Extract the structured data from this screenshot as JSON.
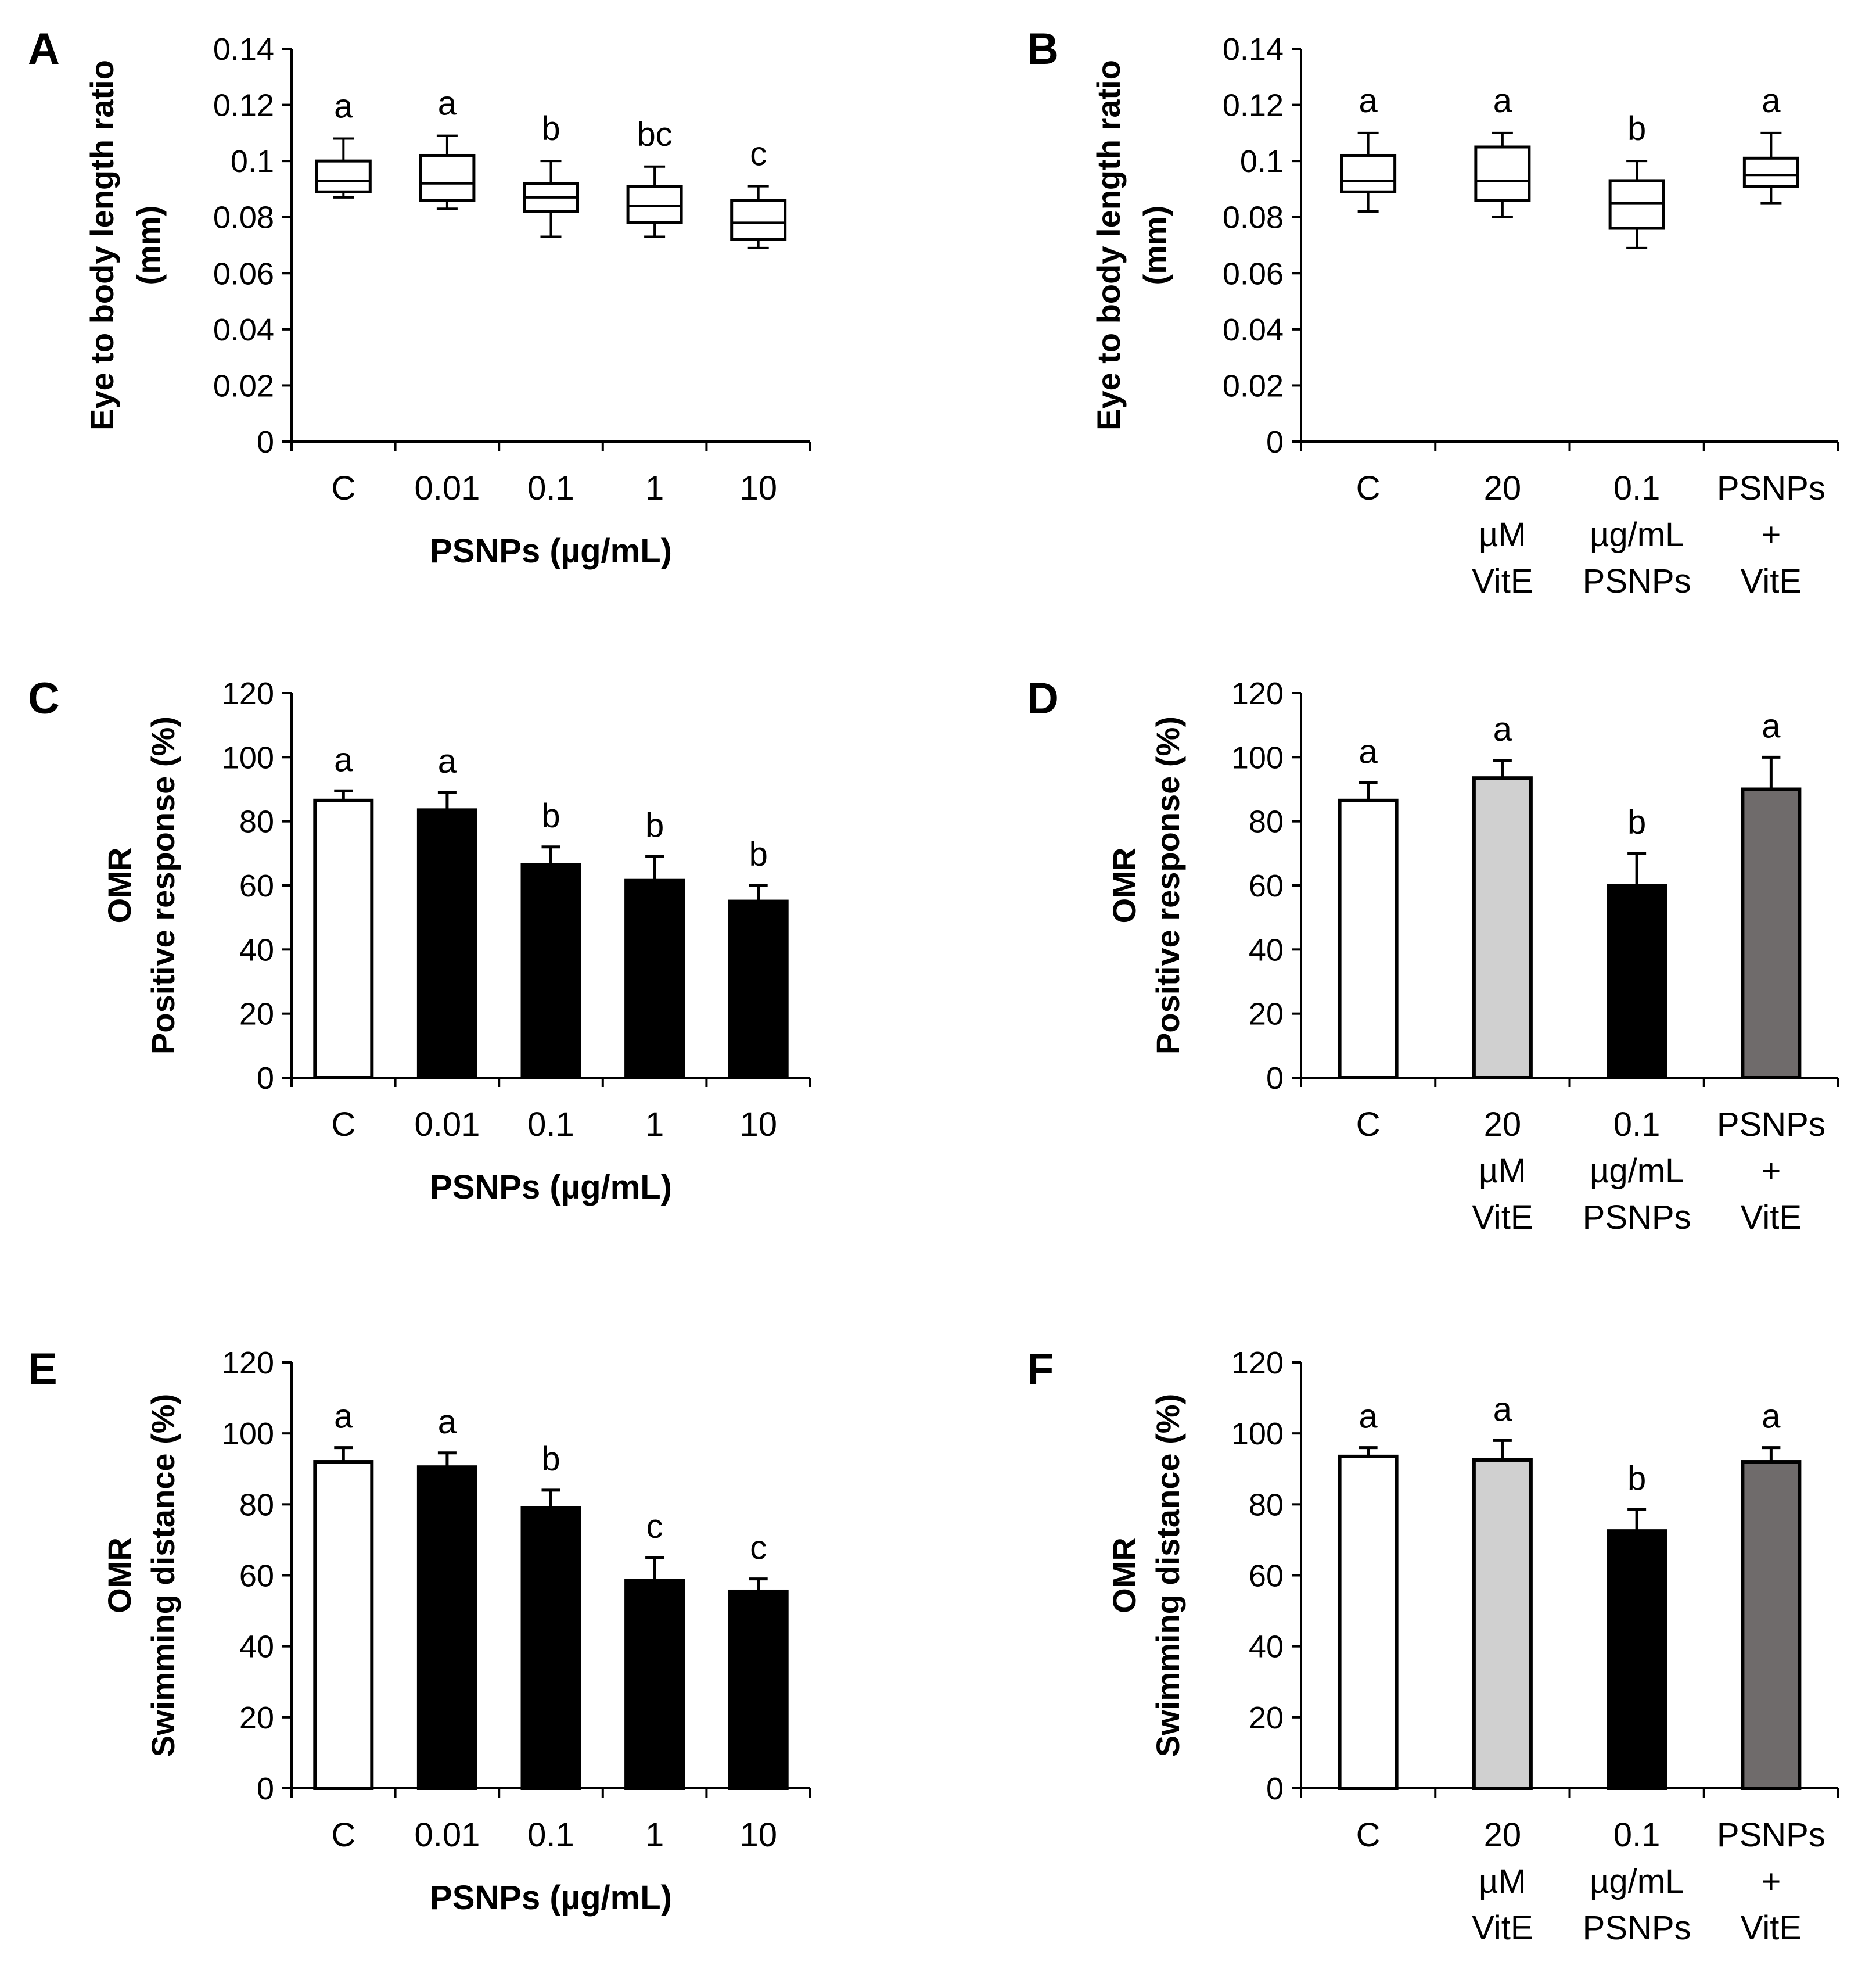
{
  "colors": {
    "control": "#ffffff",
    "vitE": "#d0d0d0",
    "psnp": "#000000",
    "combo": "#6f6b6b",
    "stroke": "#000000"
  },
  "chart_data": [
    {
      "panel": "A",
      "type": "box",
      "ylabel": [
        "Eye to body length ratio",
        "(mm)"
      ],
      "xlabel": "PSNPs (µg/mL)",
      "ylim": [
        0,
        0.14
      ],
      "yticks": [
        0,
        0.02,
        0.04,
        0.06,
        0.08,
        0.1,
        0.12,
        0.14
      ],
      "ytick_labels": [
        "0",
        "0.02",
        "0.04",
        "0.06",
        "0.08",
        "0.1",
        "0.12",
        "0.14"
      ],
      "categories": [
        [
          "C"
        ],
        [
          "0.01"
        ],
        [
          "0.1"
        ],
        [
          "1"
        ],
        [
          "10"
        ]
      ],
      "boxes": [
        {
          "min": 0.087,
          "q1": 0.089,
          "median": 0.093,
          "q3": 0.1,
          "max": 0.108
        },
        {
          "min": 0.083,
          "q1": 0.086,
          "median": 0.092,
          "q3": 0.102,
          "max": 0.109
        },
        {
          "min": 0.073,
          "q1": 0.082,
          "median": 0.087,
          "q3": 0.092,
          "max": 0.1
        },
        {
          "min": 0.073,
          "q1": 0.078,
          "median": 0.084,
          "q3": 0.091,
          "max": 0.098
        },
        {
          "min": 0.069,
          "q1": 0.072,
          "median": 0.078,
          "q3": 0.086,
          "max": 0.091
        }
      ],
      "letters": [
        "a",
        "a",
        "b",
        "bc",
        "c"
      ],
      "fills": [
        "control",
        "control",
        "control",
        "control",
        "control"
      ]
    },
    {
      "panel": "B",
      "type": "box",
      "ylabel": [
        "Eye to body length ratio",
        "(mm)"
      ],
      "xlabel": "",
      "ylim": [
        0,
        0.14
      ],
      "yticks": [
        0,
        0.02,
        0.04,
        0.06,
        0.08,
        0.1,
        0.12,
        0.14
      ],
      "ytick_labels": [
        "0",
        "0.02",
        "0.04",
        "0.06",
        "0.08",
        "0.1",
        "0.12",
        "0.14"
      ],
      "categories": [
        [
          "C"
        ],
        [
          "20",
          "µM",
          "VitE"
        ],
        [
          "0.1",
          "µg/mL",
          "PSNPs"
        ],
        [
          "PSNPs",
          "+",
          "VitE"
        ]
      ],
      "boxes": [
        {
          "min": 0.082,
          "q1": 0.089,
          "median": 0.093,
          "q3": 0.102,
          "max": 0.11
        },
        {
          "min": 0.08,
          "q1": 0.086,
          "median": 0.093,
          "q3": 0.105,
          "max": 0.11
        },
        {
          "min": 0.069,
          "q1": 0.076,
          "median": 0.085,
          "q3": 0.093,
          "max": 0.1
        },
        {
          "min": 0.085,
          "q1": 0.091,
          "median": 0.095,
          "q3": 0.101,
          "max": 0.11
        }
      ],
      "letters": [
        "a",
        "a",
        "b",
        "a"
      ],
      "fills": [
        "control",
        "control",
        "control",
        "control"
      ]
    },
    {
      "panel": "C",
      "type": "bar",
      "ylabel": [
        "OMR",
        "Positive response (%)"
      ],
      "xlabel": "PSNPs (µg/mL)",
      "ylim": [
        0,
        120
      ],
      "yticks": [
        0,
        20,
        40,
        60,
        80,
        100,
        120
      ],
      "ytick_labels": [
        "0",
        "20",
        "40",
        "60",
        "80",
        "100",
        "120"
      ],
      "categories": [
        [
          "C"
        ],
        [
          "0.01"
        ],
        [
          "0.1"
        ],
        [
          "1"
        ],
        [
          "10"
        ]
      ],
      "values": [
        86.5,
        83.5,
        66.5,
        61.5,
        55
      ],
      "errors": [
        3,
        5.5,
        5.5,
        7.5,
        5
      ],
      "letters": [
        "a",
        "a",
        "b",
        "b",
        "b"
      ],
      "fills": [
        "control",
        "psnp",
        "psnp",
        "psnp",
        "psnp"
      ]
    },
    {
      "panel": "D",
      "type": "bar",
      "ylabel": [
        "OMR",
        "Positive response (%)"
      ],
      "xlabel": "",
      "ylim": [
        0,
        120
      ],
      "yticks": [
        0,
        20,
        40,
        60,
        80,
        100,
        120
      ],
      "ytick_labels": [
        "0",
        "20",
        "40",
        "60",
        "80",
        "100",
        "120"
      ],
      "categories": [
        [
          "C"
        ],
        [
          "20",
          "µM",
          "VitE"
        ],
        [
          "0.1",
          "µg/mL",
          "PSNPs"
        ],
        [
          "PSNPs",
          "+",
          "VitE"
        ]
      ],
      "values": [
        86.5,
        93.5,
        60,
        90
      ],
      "errors": [
        5.5,
        5.5,
        10,
        10
      ],
      "letters": [
        "a",
        "a",
        "b",
        "a"
      ],
      "fills": [
        "control",
        "vitE",
        "psnp",
        "combo"
      ]
    },
    {
      "panel": "E",
      "type": "bar",
      "ylabel": [
        "OMR",
        "Swimming distance (%)"
      ],
      "xlabel": "PSNPs (µg/mL)",
      "ylim": [
        0,
        120
      ],
      "yticks": [
        0,
        20,
        40,
        60,
        80,
        100,
        120
      ],
      "ytick_labels": [
        "0",
        "20",
        "40",
        "60",
        "80",
        "100",
        "120"
      ],
      "categories": [
        [
          "C"
        ],
        [
          "0.01"
        ],
        [
          "0.1"
        ],
        [
          "1"
        ],
        [
          "10"
        ]
      ],
      "values": [
        92,
        90.5,
        79,
        58.5,
        55.5
      ],
      "errors": [
        4,
        4,
        5,
        6.5,
        3.5
      ],
      "letters": [
        "a",
        "a",
        "b",
        "c",
        "c"
      ],
      "fills": [
        "control",
        "psnp",
        "psnp",
        "psnp",
        "psnp"
      ]
    },
    {
      "panel": "F",
      "type": "bar",
      "ylabel": [
        "OMR",
        "Swimming distance (%)"
      ],
      "xlabel": "",
      "ylim": [
        0,
        120
      ],
      "yticks": [
        0,
        20,
        40,
        60,
        80,
        100,
        120
      ],
      "ytick_labels": [
        "0",
        "20",
        "40",
        "60",
        "80",
        "100",
        "120"
      ],
      "categories": [
        [
          "C"
        ],
        [
          "20",
          "µM",
          "VitE"
        ],
        [
          "0.1",
          "µg/mL",
          "PSNPs"
        ],
        [
          "PSNPs",
          "+",
          "VitE"
        ]
      ],
      "values": [
        93.5,
        92.5,
        72.5,
        92
      ],
      "errors": [
        2.5,
        5.5,
        6,
        4
      ],
      "letters": [
        "a",
        "a",
        "b",
        "a"
      ],
      "fills": [
        "control",
        "vitE",
        "psnp",
        "combo"
      ]
    }
  ]
}
